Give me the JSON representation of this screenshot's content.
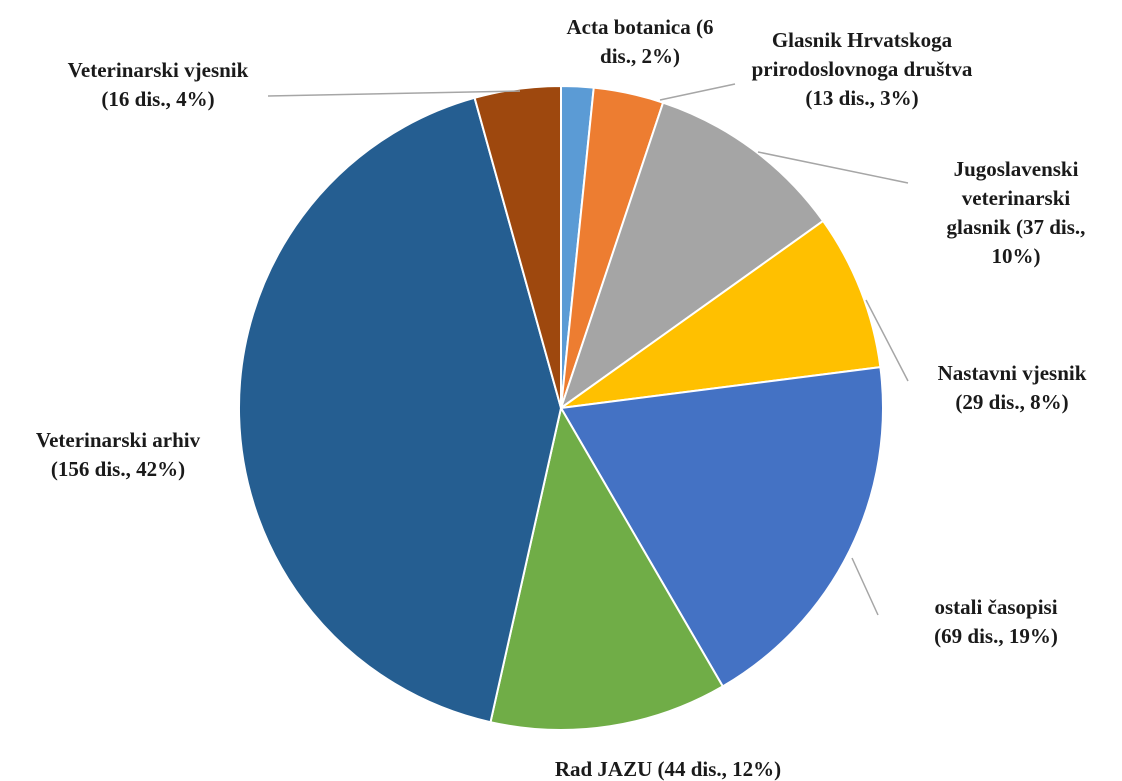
{
  "chart_data": {
    "type": "pie",
    "title": "",
    "slices": [
      {
        "name": "Acta botanica",
        "value": 6,
        "percent": 2,
        "color": "#5B9BD5",
        "label": [
          "Acta botanica (6",
          "dis., 2%)"
        ]
      },
      {
        "name": "Glasnik Hrvatskoga prirodoslovnoga društva",
        "value": 13,
        "percent": 3,
        "color": "#ED7D31",
        "label": [
          "Glasnik Hrvatskoga",
          "prirodoslovnoga društva",
          "(13 dis., 3%)"
        ]
      },
      {
        "name": "Jugoslavenski veterinarski glasnik",
        "value": 37,
        "percent": 10,
        "color": "#A5A5A5",
        "label": [
          "Jugoslavenski",
          "veterinarski",
          "glasnik (37 dis.,",
          "10%)"
        ]
      },
      {
        "name": "Nastavni vjesnik",
        "value": 29,
        "percent": 8,
        "color": "#FFC000",
        "label": [
          "Nastavni vjesnik",
          "(29 dis., 8%)"
        ]
      },
      {
        "name": "ostali časopisi",
        "value": 69,
        "percent": 19,
        "color": "#4472C4",
        "label": [
          "ostali časopisi",
          "(69 dis., 19%)"
        ]
      },
      {
        "name": "Rad JAZU",
        "value": 44,
        "percent": 12,
        "color": "#70AD47",
        "label": [
          "Rad JAZU (44 dis., 12%)"
        ]
      },
      {
        "name": "Veterinarski arhiv",
        "value": 156,
        "percent": 42,
        "color": "#255E91",
        "label": [
          "Veterinarski  arhiv",
          "(156 dis., 42%)"
        ]
      },
      {
        "name": "Veterinarski vjesnik",
        "value": 16,
        "percent": 4,
        "color": "#9E480E",
        "label": [
          "Veterinarski  vjesnik",
          "(16 dis., 4%)"
        ]
      }
    ]
  }
}
